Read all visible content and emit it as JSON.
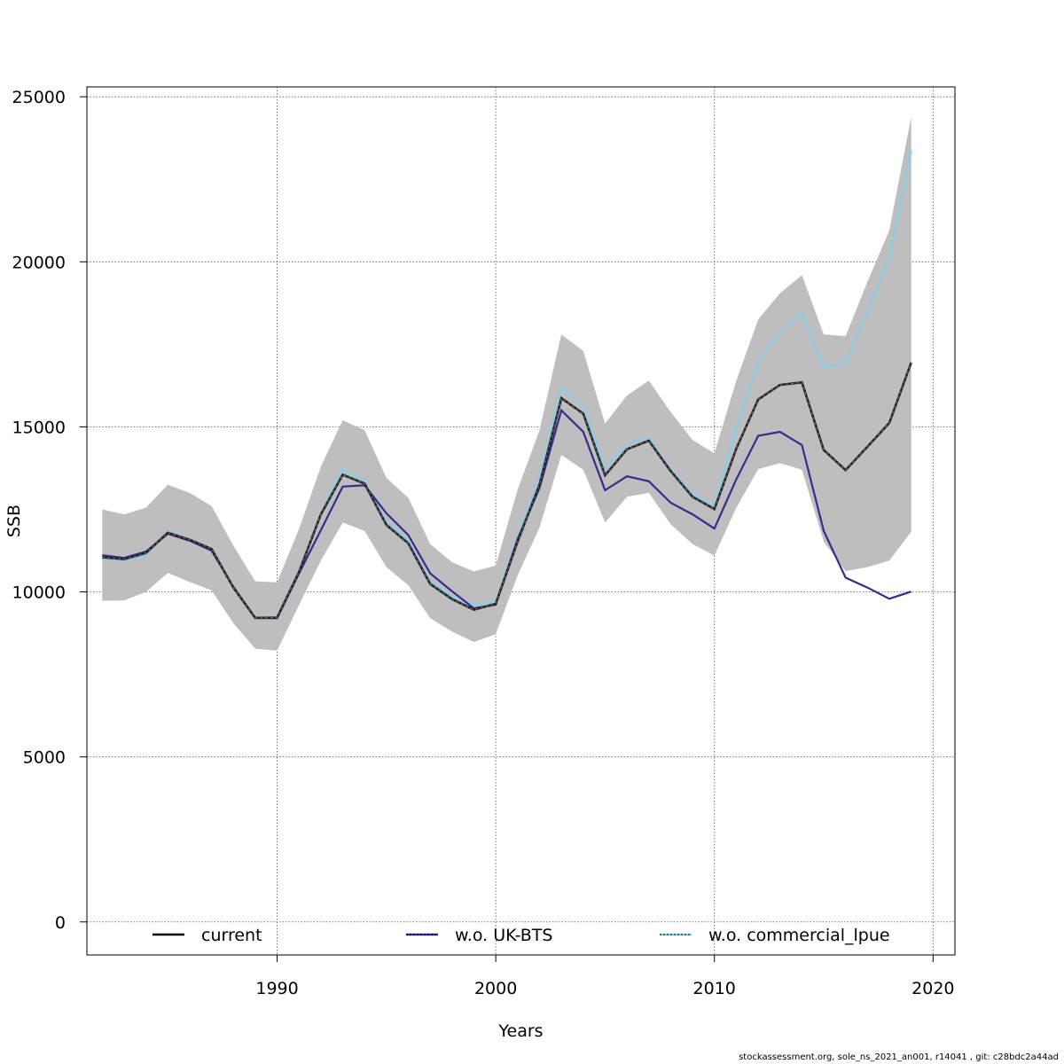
{
  "chart_data": {
    "type": "line",
    "title": "",
    "xlabel": "Years",
    "ylabel": "SSB",
    "xlim": [
      1981.3,
      2021.0
    ],
    "ylim": [
      -1000,
      25300
    ],
    "x_ticks": [
      1990,
      2000,
      2010,
      2020
    ],
    "y_ticks": [
      0,
      5000,
      10000,
      15000,
      20000,
      25000
    ],
    "grid": true,
    "legend_position": "bottom",
    "x": [
      1982,
      1983,
      1984,
      1985,
      1986,
      1987,
      1988,
      1989,
      1990,
      1991,
      1992,
      1993,
      1994,
      1995,
      1996,
      1997,
      1998,
      1999,
      2000,
      2001,
      2002,
      2003,
      2004,
      2005,
      2006,
      2007,
      2008,
      2009,
      2010,
      2011,
      2012,
      2013,
      2014,
      2015,
      2016,
      2017,
      2018,
      2019
    ],
    "band": {
      "color": "#bebebe",
      "upper": [
        12500,
        12350,
        12550,
        13250,
        13000,
        12600,
        11400,
        10320,
        10290,
        11900,
        13800,
        15200,
        14900,
        13450,
        12850,
        11450,
        10900,
        10620,
        10800,
        13100,
        14900,
        17800,
        17300,
        15100,
        15950,
        16400,
        15450,
        14600,
        14200,
        16400,
        18250,
        19050,
        19600,
        17800,
        17750,
        19400,
        20950,
        24400
      ],
      "lower": [
        9730,
        9740,
        10000,
        10570,
        10300,
        10050,
        9050,
        8280,
        8220,
        9600,
        10950,
        12100,
        11850,
        10750,
        10200,
        9200,
        8800,
        8480,
        8720,
        10500,
        11950,
        14150,
        13700,
        12100,
        12880,
        13000,
        12050,
        11450,
        11100,
        12550,
        13720,
        13900,
        13700,
        11530,
        10630,
        10750,
        10950,
        11820
      ]
    },
    "series": [
      {
        "name": "current",
        "color": "#222222",
        "dashed": true,
        "values": [
          11050,
          10990,
          11180,
          11790,
          11580,
          11300,
          10130,
          9210,
          9220,
          10600,
          12350,
          13550,
          13280,
          12030,
          11470,
          10240,
          9780,
          9460,
          9640,
          11530,
          13250,
          15870,
          15400,
          13530,
          14320,
          14580,
          13660,
          12880,
          12510,
          14340,
          15830,
          16270,
          16350,
          14300,
          13690,
          14400,
          15120,
          16950
        ]
      },
      {
        "name": "w.o. UK-BTS",
        "color": "#3a2a8c",
        "dashed": false,
        "values": [
          11110,
          11030,
          11220,
          11760,
          11550,
          11250,
          10150,
          9210,
          9200,
          10560,
          11870,
          13190,
          13230,
          12380,
          11720,
          10560,
          10020,
          9500,
          9610,
          11600,
          13150,
          15500,
          14850,
          13080,
          13500,
          13350,
          12700,
          12350,
          11920,
          13410,
          14730,
          14850,
          14450,
          11850,
          10430,
          10130,
          9790,
          10010
        ]
      },
      {
        "name": "w.o. commercial_lpue",
        "color": "#87ceeb",
        "dashed": false,
        "values": [
          11000,
          10950,
          11120,
          11840,
          11580,
          11310,
          10130,
          9240,
          9230,
          10610,
          12370,
          13730,
          13340,
          12110,
          11550,
          10310,
          9860,
          9620,
          9700,
          11670,
          13420,
          16180,
          15650,
          13710,
          14460,
          14670,
          13710,
          12950,
          12600,
          14940,
          16950,
          17870,
          18450,
          16830,
          16920,
          18490,
          20090,
          23380
        ]
      }
    ]
  },
  "footer": "stockassessment.org, sole_ns_2021_an001, r14041 , git: c28bdc2a44ad"
}
